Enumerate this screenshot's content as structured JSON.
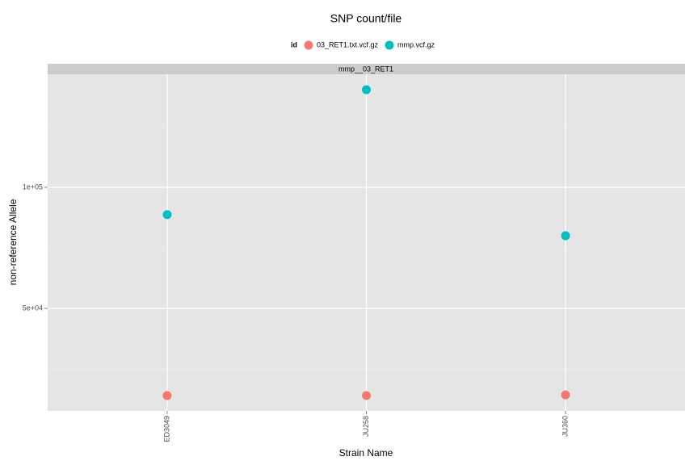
{
  "chart_data": {
    "type": "scatter",
    "title": "SNP count/file",
    "legend_title": "id",
    "legend_position": "top",
    "facet_label": "mmp__03_RET1",
    "x_label": "Strain Name",
    "y_label": "non-reference Allele",
    "categories": [
      "ED3049",
      "JU258",
      "JU360"
    ],
    "series": [
      {
        "name": "03_RET1.txt.vcf.gz",
        "color": "#F8766D",
        "values": [
          14000,
          14000,
          14300
        ]
      },
      {
        "name": "mmp.vcf.gz",
        "color": "#00BFC4",
        "values": [
          88700,
          140300,
          80000
        ]
      }
    ],
    "ylim": [
      7667,
      146667
    ],
    "yticks": [
      {
        "value": 50000,
        "label": "5e+04"
      },
      {
        "value": 100000,
        "label": "1e+05"
      }
    ],
    "minor_yticks": [
      25000,
      75000,
      125000
    ],
    "grid": true
  }
}
